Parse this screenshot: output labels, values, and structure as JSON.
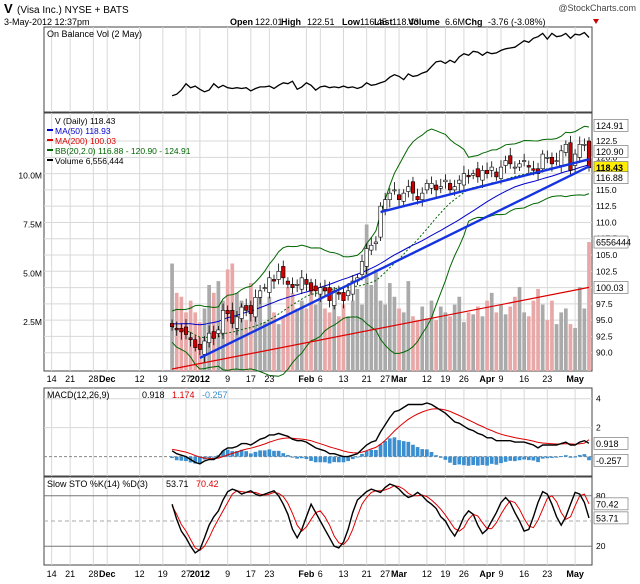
{
  "header": {
    "ticker": "V",
    "name": "(Visa Inc.) NYSE + BATS",
    "watermark": "@StockCharts.com",
    "date": "3-May-2012 12:37pm",
    "quote": [
      {
        "label": "Open",
        "value": "122.01"
      },
      {
        "label": "High",
        "value": "122.51"
      },
      {
        "label": "Low",
        "value": "116.45"
      },
      {
        "label": "Last",
        "value": "118.43"
      },
      {
        "label": "Volume",
        "value": "6.6M"
      },
      {
        "label": "Chg",
        "value": "-3.76 (-3.08%)"
      }
    ]
  },
  "colors": {
    "bull": "#ffffff",
    "bear": "#cc0000",
    "ma50": "#0000cc",
    "ma200": "#dd0000",
    "bb": "#006600",
    "trendline": "#1533e0",
    "volume_up": "#aaaaaa",
    "volume_down": "#e8a8a8",
    "histogram": "#3b8fd0",
    "signal": "#dd0000",
    "price_tag": "#ffee00"
  },
  "chart_data": [
    {
      "type": "line",
      "panel": "On Balance Volume",
      "legend": "On Balance Vol (2 May)",
      "values": [
        20,
        22,
        27,
        35,
        30,
        32,
        28,
        25,
        27,
        35,
        30,
        33,
        30,
        29,
        30,
        29,
        30,
        26,
        29,
        31,
        31,
        32,
        29,
        33,
        36,
        35,
        38,
        28,
        31,
        36,
        33,
        27,
        31,
        32,
        30,
        31,
        30,
        32,
        30,
        31,
        29,
        31,
        36,
        33,
        34,
        36,
        38,
        43,
        46,
        44,
        40,
        47,
        44,
        45,
        48,
        50,
        56,
        62,
        63,
        60,
        64,
        61,
        68,
        72,
        70,
        75,
        74,
        70,
        74,
        72,
        73,
        76,
        78,
        79,
        80,
        84,
        88,
        86,
        91,
        93,
        97,
        90,
        97,
        93,
        94,
        97,
        91,
        96,
        95,
        98,
        92
      ]
    },
    {
      "type": "candlestick",
      "panel": "Price",
      "legend": [
        "V (Daily) 118.43",
        "MA(50) 118.93",
        "MA(200) 100.03",
        "BB(20,2.0) 116.88 - 120.90 - 124.91",
        "Volume 6,556,444"
      ],
      "y_ticks": [
        "122.5",
        "120.0",
        "117.5",
        "115.0",
        "112.5",
        "110.0",
        "107.5",
        "105.0",
        "102.5",
        "100.0",
        "97.5",
        "95.0",
        "92.5",
        "90.0"
      ],
      "ylim": [
        87.5,
        126.5
      ],
      "price_tags": [
        {
          "text": "124.91",
          "value": 124.91
        },
        {
          "text": "120.90",
          "value": 120.9
        },
        {
          "text": "118.43",
          "value": 118.43,
          "highlight": true
        },
        {
          "text": "116.88",
          "value": 116.88
        },
        {
          "text": "100.03",
          "value": 100.03
        }
      ],
      "volume_tag": "6556444",
      "volume_ticks": [
        "10.0M",
        "7.5M",
        "5.0M",
        "2.5M"
      ],
      "volume_ylim": [
        0,
        13
      ],
      "close": [
        94.0,
        93.5,
        93.2,
        92.8,
        92.0,
        90.8,
        90.5,
        91.8,
        93.0,
        92.2,
        93.5,
        96.5,
        96.0,
        94.5,
        95.5,
        97.0,
        96.5,
        96.0,
        98.5,
        99.5,
        100.0,
        101.5,
        101.0,
        102.5,
        101.5,
        100.5,
        100.0,
        100.5,
        101.5,
        100.5,
        99.5,
        99.5,
        100.0,
        99.5,
        98.0,
        99.5,
        99.0,
        98.0,
        99.5,
        101.0,
        101.5,
        104.0,
        106.0,
        106.5,
        107.0,
        112.5,
        113.5,
        114.5,
        115.0,
        113.5,
        114.5,
        115.5,
        114.5,
        113.5,
        114.5,
        116.0,
        116.0,
        115.0,
        115.5,
        116.5,
        115.0,
        115.5,
        116.5,
        117.5,
        117.0,
        117.5,
        117.0,
        118.0,
        117.5,
        118.5,
        117.0,
        118.5,
        119.5,
        119.0,
        118.5,
        119.0,
        119.5,
        118.5,
        118.0,
        117.5,
        120.5,
        120.0,
        119.0,
        119.5,
        121.0,
        122.0,
        118.0,
        120.5,
        122.0,
        122.0,
        118.4
      ],
      "volume": [
        5.5,
        4.0,
        3.8,
        3.0,
        3.6,
        3.0,
        2.5,
        3.2,
        4.4,
        4.0,
        4.6,
        3.6,
        5.2,
        5.5,
        4.0,
        3.6,
        2.6,
        4.5,
        3.0,
        4.0,
        2.5,
        3.8,
        3.0,
        2.4,
        2.8,
        4.3,
        4.0,
        3.2,
        3.6,
        3.2,
        4.4,
        3.4,
        4.0,
        3.2,
        3.0,
        3.8,
        2.8,
        3.4,
        2.8,
        3.6,
        4.2,
        3.4,
        7.5,
        4.4,
        5.2,
        3.6,
        3.4,
        4.5,
        3.8,
        3.2,
        3.0,
        4.6,
        2.8,
        2.6,
        3.3,
        2.7,
        3.6,
        2.6,
        3.3,
        3.0,
        2.8,
        3.4,
        3.8,
        2.5,
        3.0,
        2.9,
        3.3,
        2.8,
        3.6,
        4.0,
        3.0,
        3.4,
        2.9,
        3.3,
        3.8,
        4.3,
        3.0,
        2.8,
        3.6,
        4.2,
        3.4,
        2.6,
        3.6,
        2.4,
        3.0,
        3.2,
        2.4,
        2.2,
        4.3,
        3.2,
        6.6
      ],
      "ma50_start": 95.0,
      "ma50_end": 118.93,
      "ma200_start": 87.5,
      "ma200_end": 100.03,
      "trendlines": [
        {
          "from": [
            6,
            89.2
          ],
          "to": [
            90,
            118.6
          ]
        },
        {
          "from": [
            45,
            111.6
          ],
          "to": [
            90,
            119.7
          ]
        }
      ]
    },
    {
      "type": "line",
      "panel": "MACD",
      "legend": "MACD(12,26,9)",
      "legend_values": [
        "0.918",
        "1.174",
        "-0.257"
      ],
      "y_ticks": [
        "4",
        "2"
      ],
      "ylim": [
        -1.2,
        4.6
      ],
      "tags": [
        {
          "text": "0.918",
          "value": 0.918
        },
        {
          "text": "-0.257",
          "value": -0.257
        }
      ],
      "macd": [
        0.4,
        0.2,
        0.1,
        0.0,
        -0.2,
        -0.4,
        -0.5,
        -0.3,
        -0.2,
        -0.2,
        0.0,
        0.4,
        0.6,
        0.6,
        0.7,
        0.9,
        0.9,
        0.8,
        1.0,
        1.2,
        1.3,
        1.5,
        1.5,
        1.6,
        1.5,
        1.4,
        1.2,
        1.1,
        1.1,
        1.0,
        0.8,
        0.6,
        0.5,
        0.4,
        0.2,
        0.2,
        0.1,
        0.0,
        0.0,
        0.1,
        0.2,
        0.5,
        0.8,
        1.0,
        1.1,
        1.7,
        2.2,
        2.7,
        3.1,
        3.2,
        3.4,
        3.6,
        3.6,
        3.6,
        3.6,
        3.7,
        3.6,
        3.4,
        3.2,
        3.0,
        2.7,
        2.4,
        2.3,
        2.1,
        1.9,
        1.8,
        1.6,
        1.5,
        1.3,
        1.3,
        1.1,
        1.1,
        1.1,
        1.1,
        1.0,
        1.0,
        1.0,
        0.9,
        0.8,
        0.6,
        0.8,
        0.8,
        0.8,
        0.8,
        0.9,
        1.0,
        0.8,
        0.8,
        1.0,
        1.1,
        0.92
      ],
      "signal": [
        0.5,
        0.45,
        0.38,
        0.31,
        0.2,
        0.08,
        -0.04,
        -0.1,
        -0.11,
        -0.13,
        -0.1,
        0.0,
        0.12,
        0.22,
        0.31,
        0.43,
        0.52,
        0.58,
        0.67,
        0.77,
        0.87,
        1.0,
        1.1,
        1.2,
        1.26,
        1.29,
        1.27,
        1.24,
        1.21,
        1.17,
        1.1,
        0.99,
        0.89,
        0.79,
        0.67,
        0.58,
        0.49,
        0.39,
        0.31,
        0.27,
        0.26,
        0.31,
        0.41,
        0.53,
        0.64,
        0.85,
        1.12,
        1.44,
        1.77,
        2.06,
        2.33,
        2.58,
        2.78,
        2.94,
        3.08,
        3.2,
        3.28,
        3.3,
        3.28,
        3.22,
        3.12,
        2.98,
        2.84,
        2.69,
        2.53,
        2.38,
        2.22,
        2.08,
        1.92,
        1.8,
        1.66,
        1.55,
        1.46,
        1.39,
        1.31,
        1.25,
        1.2,
        1.14,
        1.07,
        0.98,
        0.94,
        0.91,
        0.89,
        0.87,
        0.87,
        0.9,
        0.88,
        0.86,
        0.89,
        0.93,
        1.17
      ]
    },
    {
      "type": "line",
      "panel": "Slow Stochastic",
      "legend": "Slow STO %K(14) %D(3)",
      "legend_values": [
        "53.71",
        "70.42"
      ],
      "y_ticks": [
        "80",
        "50",
        "20"
      ],
      "ylim": [
        0,
        100
      ],
      "tags": [
        {
          "text": "70.42",
          "value": 70.42
        },
        {
          "text": "53.71",
          "value": 53.71
        }
      ],
      "k": [
        70,
        52,
        38,
        30,
        20,
        12,
        16,
        30,
        45,
        55,
        62,
        75,
        85,
        88,
        86,
        82,
        84,
        86,
        82,
        80,
        82,
        84,
        86,
        80,
        70,
        58,
        40,
        30,
        40,
        55,
        70,
        60,
        50,
        40,
        30,
        20,
        18,
        25,
        40,
        60,
        75,
        80,
        85,
        88,
        86,
        84,
        90,
        94,
        92,
        88,
        82,
        78,
        80,
        84,
        80,
        74,
        70,
        65,
        55,
        50,
        40,
        32,
        42,
        55,
        62,
        58,
        45,
        35,
        40,
        50,
        60,
        72,
        78,
        72,
        60,
        50,
        38,
        40,
        55,
        72,
        85,
        82,
        70,
        55,
        45,
        55,
        70,
        84,
        82,
        72,
        53.71
      ],
      "d": [
        68,
        58,
        46,
        38,
        28,
        18,
        15,
        20,
        30,
        42,
        52,
        62,
        72,
        82,
        86,
        85,
        84,
        84,
        84,
        82,
        81,
        82,
        84,
        83,
        79,
        71,
        59,
        45,
        38,
        43,
        52,
        60,
        62,
        55,
        45,
        32,
        24,
        22,
        28,
        40,
        56,
        70,
        78,
        84,
        86,
        86,
        87,
        89,
        92,
        91,
        88,
        83,
        80,
        80,
        81,
        79,
        75,
        70,
        64,
        57,
        49,
        41,
        38,
        42,
        52,
        58,
        56,
        48,
        41,
        41,
        48,
        58,
        67,
        74,
        72,
        64,
        53,
        44,
        42,
        51,
        64,
        77,
        80,
        73,
        60,
        52,
        55,
        68,
        80,
        82,
        70.42
      ]
    }
  ],
  "x_axis": {
    "labels": [
      {
        "text": "14",
        "index": 1,
        "bold": false
      },
      {
        "text": "21",
        "index": 5,
        "bold": false
      },
      {
        "text": "28",
        "index": 10,
        "bold": false
      },
      {
        "text": "Dec",
        "index": 13,
        "bold": true
      },
      {
        "text": "12",
        "index": 20,
        "bold": false
      },
      {
        "text": "19",
        "index": 25,
        "bold": false
      },
      {
        "text": "27",
        "index": 30,
        "bold": false
      },
      {
        "text": "2012",
        "index": 33,
        "bold": true
      },
      {
        "text": "9",
        "index": 39,
        "bold": false
      },
      {
        "text": "17",
        "index": 44,
        "bold": false
      },
      {
        "text": "23",
        "index": 48,
        "bold": false
      },
      {
        "text": "Feb",
        "index": 56,
        "bold": true
      },
      {
        "text": "6",
        "index": 59,
        "bold": false
      },
      {
        "text": "13",
        "index": 64,
        "bold": false
      },
      {
        "text": "21",
        "index": 69,
        "bold": false
      },
      {
        "text": "27",
        "index": 73,
        "bold": false
      },
      {
        "text": "Mar",
        "index": 76,
        "bold": true
      },
      {
        "text": "12",
        "index": 82,
        "bold": false
      },
      {
        "text": "19",
        "index": 86,
        "bold": false
      },
      {
        "text": "26",
        "index": 90,
        "bold": false
      },
      {
        "text": "Apr",
        "index": 95,
        "bold": true
      },
      {
        "text": "9",
        "index": 98,
        "bold": false
      },
      {
        "text": "16",
        "index": 103,
        "bold": false
      },
      {
        "text": "23",
        "index": 108,
        "bold": false
      },
      {
        "text": "May",
        "index": 114,
        "bold": true
      }
    ],
    "count": 118
  }
}
